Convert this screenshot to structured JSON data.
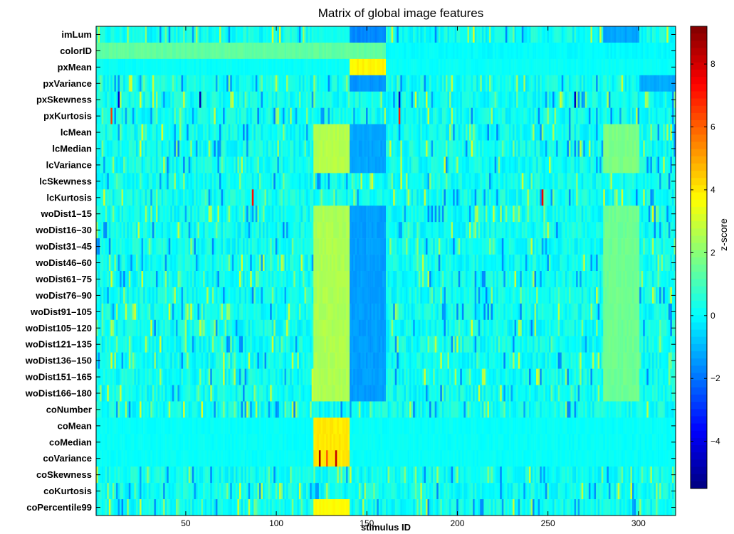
{
  "chart_data": {
    "type": "heatmap",
    "title": "Matrix of global image features",
    "xlabel": "stimulus ID",
    "colorbar_label": "z-score",
    "x_range": [
      1,
      320
    ],
    "x_ticks": [
      50,
      100,
      150,
      200,
      250,
      300
    ],
    "colorbar_range": [
      -5.5,
      9.2
    ],
    "colorbar_ticks": [
      8,
      6,
      4,
      2,
      0,
      -2,
      -4
    ],
    "colormap": "jet",
    "rows": [
      "imLum",
      "colorID",
      "pxMean",
      "pxVariance",
      "pxSkewness",
      "pxKurtosis",
      "lcMean",
      "lcMedian",
      "lcVariance",
      "lcSkewness",
      "lcKurtosis",
      "woDist1–15",
      "woDist16–30",
      "woDist31–45",
      "woDist46–60",
      "woDist61–75",
      "woDist76–90",
      "woDist91–105",
      "woDist105–120",
      "woDist121–135",
      "woDist136–150",
      "woDist151–165",
      "woDist166–180",
      "coNumber",
      "coMean",
      "coMedian",
      "coVariance",
      "coSkewness",
      "coKurtosis",
      "coPercentile99"
    ],
    "blocks": [
      {
        "row_range": [
          1,
          1
        ],
        "x_range": [
          121,
          140
        ],
        "value": 0.3
      },
      {
        "row_range": [
          1,
          1
        ],
        "x_range": [
          141,
          160
        ],
        "value": -1.7
      },
      {
        "row_range": [
          1,
          1
        ],
        "x_range": [
          281,
          300
        ],
        "value": -1.3
      },
      {
        "row_range": [
          2,
          2
        ],
        "x_range": [
          1,
          160
        ],
        "value": 1.4
      },
      {
        "row_range": [
          2,
          2
        ],
        "x_range": [
          161,
          320
        ],
        "value": 0.0
      },
      {
        "row_range": [
          3,
          3
        ],
        "x_range": [
          141,
          160
        ],
        "value": 3.8
      },
      {
        "row_range": [
          4,
          4
        ],
        "x_range": [
          141,
          160
        ],
        "value": -1.5
      },
      {
        "row_range": [
          4,
          4
        ],
        "x_range": [
          301,
          320
        ],
        "value": -1.2
      },
      {
        "row_range": [
          7,
          9
        ],
        "x_range": [
          121,
          140
        ],
        "value": 2.6
      },
      {
        "row_range": [
          7,
          9
        ],
        "x_range": [
          141,
          160
        ],
        "value": -1.3
      },
      {
        "row_range": [
          7,
          9
        ],
        "x_range": [
          281,
          300
        ],
        "value": 1.8
      },
      {
        "row_range": [
          12,
          23
        ],
        "x_range": [
          121,
          140
        ],
        "value": 2.5
      },
      {
        "row_range": [
          12,
          23
        ],
        "x_range": [
          141,
          160
        ],
        "value": -1.4
      },
      {
        "row_range": [
          12,
          23
        ],
        "x_range": [
          281,
          300
        ],
        "value": 1.6
      },
      {
        "row_range": [
          25,
          27
        ],
        "x_range": [
          121,
          140
        ],
        "value": 4.0
      },
      {
        "row_range": [
          30,
          30
        ],
        "x_range": [
          121,
          140
        ],
        "value": 3.7
      }
    ],
    "peaks": [
      {
        "row": "pxSkewness",
        "x": 13,
        "value": -4.2
      },
      {
        "row": "pxSkewness",
        "x": 58,
        "value": -4.8
      },
      {
        "row": "pxSkewness",
        "x": 168,
        "value": -4.5
      },
      {
        "row": "pxSkewness",
        "x": 265,
        "value": -4.7
      },
      {
        "row": "pxKurtosis",
        "x": 9,
        "value": 6.5
      },
      {
        "row": "pxKurtosis",
        "x": 168,
        "value": 7.0
      },
      {
        "row": "lcKurtosis",
        "x": 87,
        "value": 7.2
      },
      {
        "row": "lcKurtosis",
        "x": 247,
        "value": 7.6
      },
      {
        "row": "coVariance",
        "x": 124,
        "value": 8.6
      },
      {
        "row": "coVariance",
        "x": 128,
        "value": 6.0
      },
      {
        "row": "coVariance",
        "x": 133,
        "value": 8.2
      }
    ]
  }
}
